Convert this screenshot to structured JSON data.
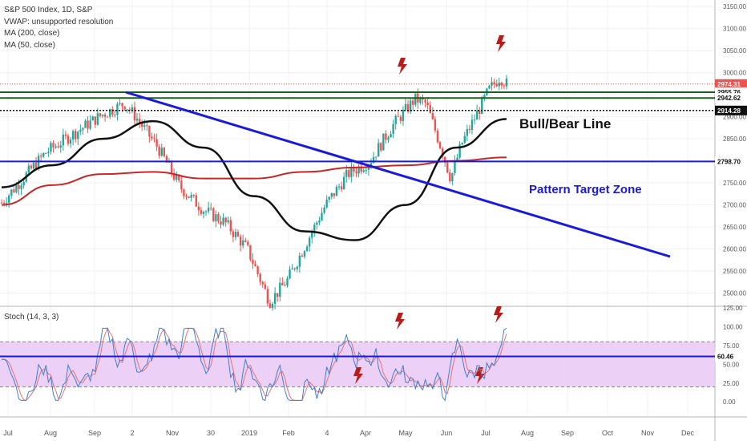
{
  "legend": {
    "title": "S&P 500 Index, 1D, S&P",
    "vwap": "VWAP: unsupported resolution",
    "ma200": "MA (200, close)",
    "ma50": "MA (50, close)"
  },
  "stoch_title": "Stoch (14, 3, 3)",
  "annotations": {
    "bull_bear": "Bull/Bear Line",
    "target_zone": "Pattern Target Zone"
  },
  "price_labels": {
    "p1": "2974.31",
    "p2": "2955.76",
    "p3": "2942.62",
    "p4": "2914.28",
    "p5": "2798.70",
    "stoch": "60.46"
  },
  "colors": {
    "up": "#26a69a",
    "down": "#ef5350",
    "ma200": "#c62828",
    "ma50": "#111111",
    "trend": "#1a1adb",
    "green_line": "#1b5e20",
    "lightning": "#b71c1c",
    "stoch_fill": "#e9c8f5",
    "k_line": "#3f7fd0",
    "d_line": "#e57373"
  },
  "chart_data": [
    {
      "type": "candlestick",
      "title": "S&P 500 Index, 1D, S&P",
      "y_ticks": [
        "3150.00",
        "3100.00",
        "3050.00",
        "3000.00",
        "2950.00",
        "2900.00",
        "2850.00",
        "2800.00",
        "2750.00",
        "2700.00",
        "2650.00",
        "2600.00",
        "2550.00",
        "2500.00"
      ],
      "x_ticks": [
        "Jul",
        "Aug",
        "Sep",
        "2",
        "Nov",
        "30",
        "2019",
        "Feb",
        "4",
        "Apr",
        "May",
        "Jun",
        "Jul",
        "Aug",
        "Sep",
        "Oct",
        "Nov",
        "Dec"
      ],
      "ylim": [
        2470,
        3165
      ],
      "series": [
        {
          "name": "MA (200, close)",
          "x": [
            0,
            20,
            40,
            60,
            80,
            100,
            120,
            140,
            160,
            180,
            200
          ],
          "values": [
            2700,
            2745,
            2770,
            2775,
            2760,
            2760,
            2775,
            2785,
            2790,
            2800,
            2808
          ]
        },
        {
          "name": "MA (50, close)",
          "x": [
            0,
            20,
            40,
            60,
            80,
            100,
            120,
            140,
            160,
            180,
            200
          ],
          "values": [
            2740,
            2790,
            2850,
            2890,
            2830,
            2720,
            2640,
            2620,
            2700,
            2830,
            2895
          ]
        }
      ],
      "horizontal_levels": [
        2974.31,
        2955.76,
        2942.62,
        2914.28,
        2798.7
      ]
    },
    {
      "type": "line",
      "title": "Stoch (14, 3, 3)",
      "y_ticks": [
        "125.00",
        "100.00",
        "75.00",
        "50.00",
        "25.00",
        "0.00"
      ],
      "ylim": [
        -20,
        125
      ],
      "bands": [
        20,
        80
      ],
      "level": 60.46
    }
  ]
}
